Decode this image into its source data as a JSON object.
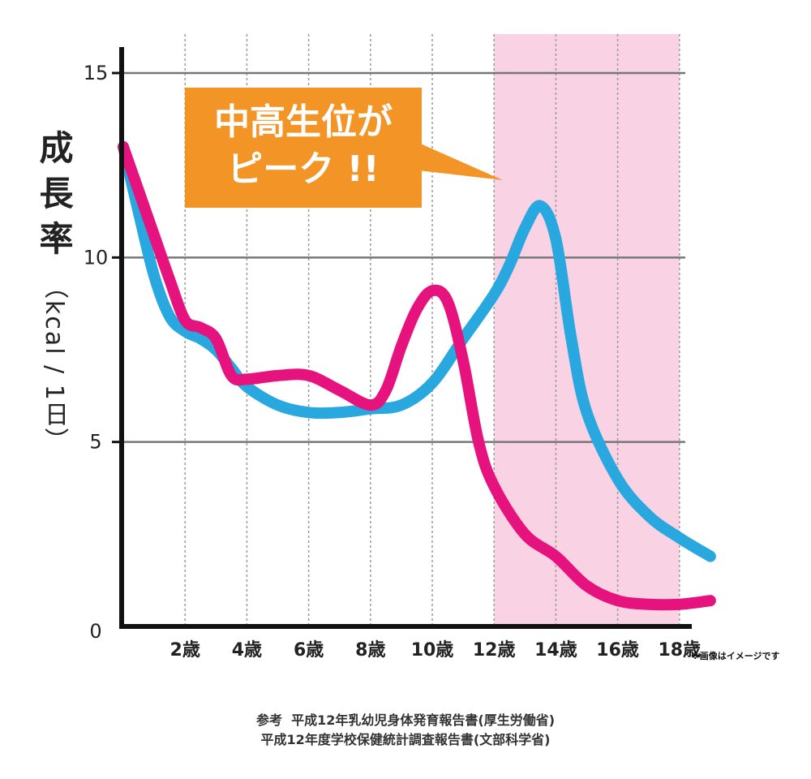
{
  "chart_data": {
    "type": "line",
    "ylabel": "成長率",
    "ylabel_unit": "（kcal / 1日）",
    "ylim": [
      0,
      15
    ],
    "yticks": [
      0,
      5,
      10,
      15
    ],
    "xlim": [
      0,
      19
    ],
    "xticks": [
      2,
      4,
      6,
      8,
      10,
      12,
      14,
      16,
      18
    ],
    "xtick_labels": [
      "2歳",
      "4歳",
      "6歳",
      "8歳",
      "10歳",
      "12歳",
      "14歳",
      "16歳",
      "18歳"
    ],
    "highlight_range": [
      12,
      18
    ],
    "grid": "horizontal and vertical dotted",
    "series": [
      {
        "color": "#29a7df",
        "x": [
          0,
          0.5,
          1,
          1.5,
          2,
          2.5,
          3,
          3.5,
          4,
          5,
          6,
          7,
          8,
          9,
          10,
          11,
          12,
          12.5,
          13,
          13.5,
          14,
          14.5,
          15,
          16,
          17,
          18,
          19
        ],
        "y": [
          13,
          11.2,
          9.5,
          8.4,
          8.0,
          7.8,
          7.5,
          7.0,
          6.5,
          6.0,
          5.8,
          5.8,
          5.9,
          6.0,
          6.6,
          7.8,
          9.0,
          9.8,
          10.8,
          11.4,
          10.5,
          7.8,
          5.8,
          4.0,
          3.0,
          2.4,
          1.9
        ]
      },
      {
        "color": "#e6127e",
        "x": [
          0,
          0.5,
          1,
          1.5,
          2,
          2.5,
          3,
          3.5,
          4,
          5,
          6,
          7,
          8,
          8.5,
          9,
          9.5,
          10,
          10.5,
          11,
          11.5,
          12,
          13,
          14,
          15,
          16,
          17,
          18,
          19
        ],
        "y": [
          13,
          11.8,
          10.6,
          9.4,
          8.3,
          8.1,
          7.8,
          6.8,
          6.7,
          6.8,
          6.8,
          6.4,
          6.0,
          6.4,
          7.6,
          8.6,
          9.1,
          8.8,
          7.2,
          5.0,
          3.8,
          2.5,
          1.9,
          1.1,
          0.7,
          0.6,
          0.6,
          0.7
        ]
      }
    ]
  },
  "colors": {
    "highlight": "#f9d3e4",
    "grid": "#9a9a9a",
    "axis": "#111111",
    "callout_bg": "#f39426"
  },
  "callout": {
    "line1": "中高生位が",
    "line2": "ピーク !!"
  },
  "note": "※画像はイメージです",
  "references": {
    "line1": "参考  平成12年乳幼児身体発育報告書(厚生労働省)",
    "line2": "平成12年度学校保健統計調査報告書(文部科学省)"
  }
}
